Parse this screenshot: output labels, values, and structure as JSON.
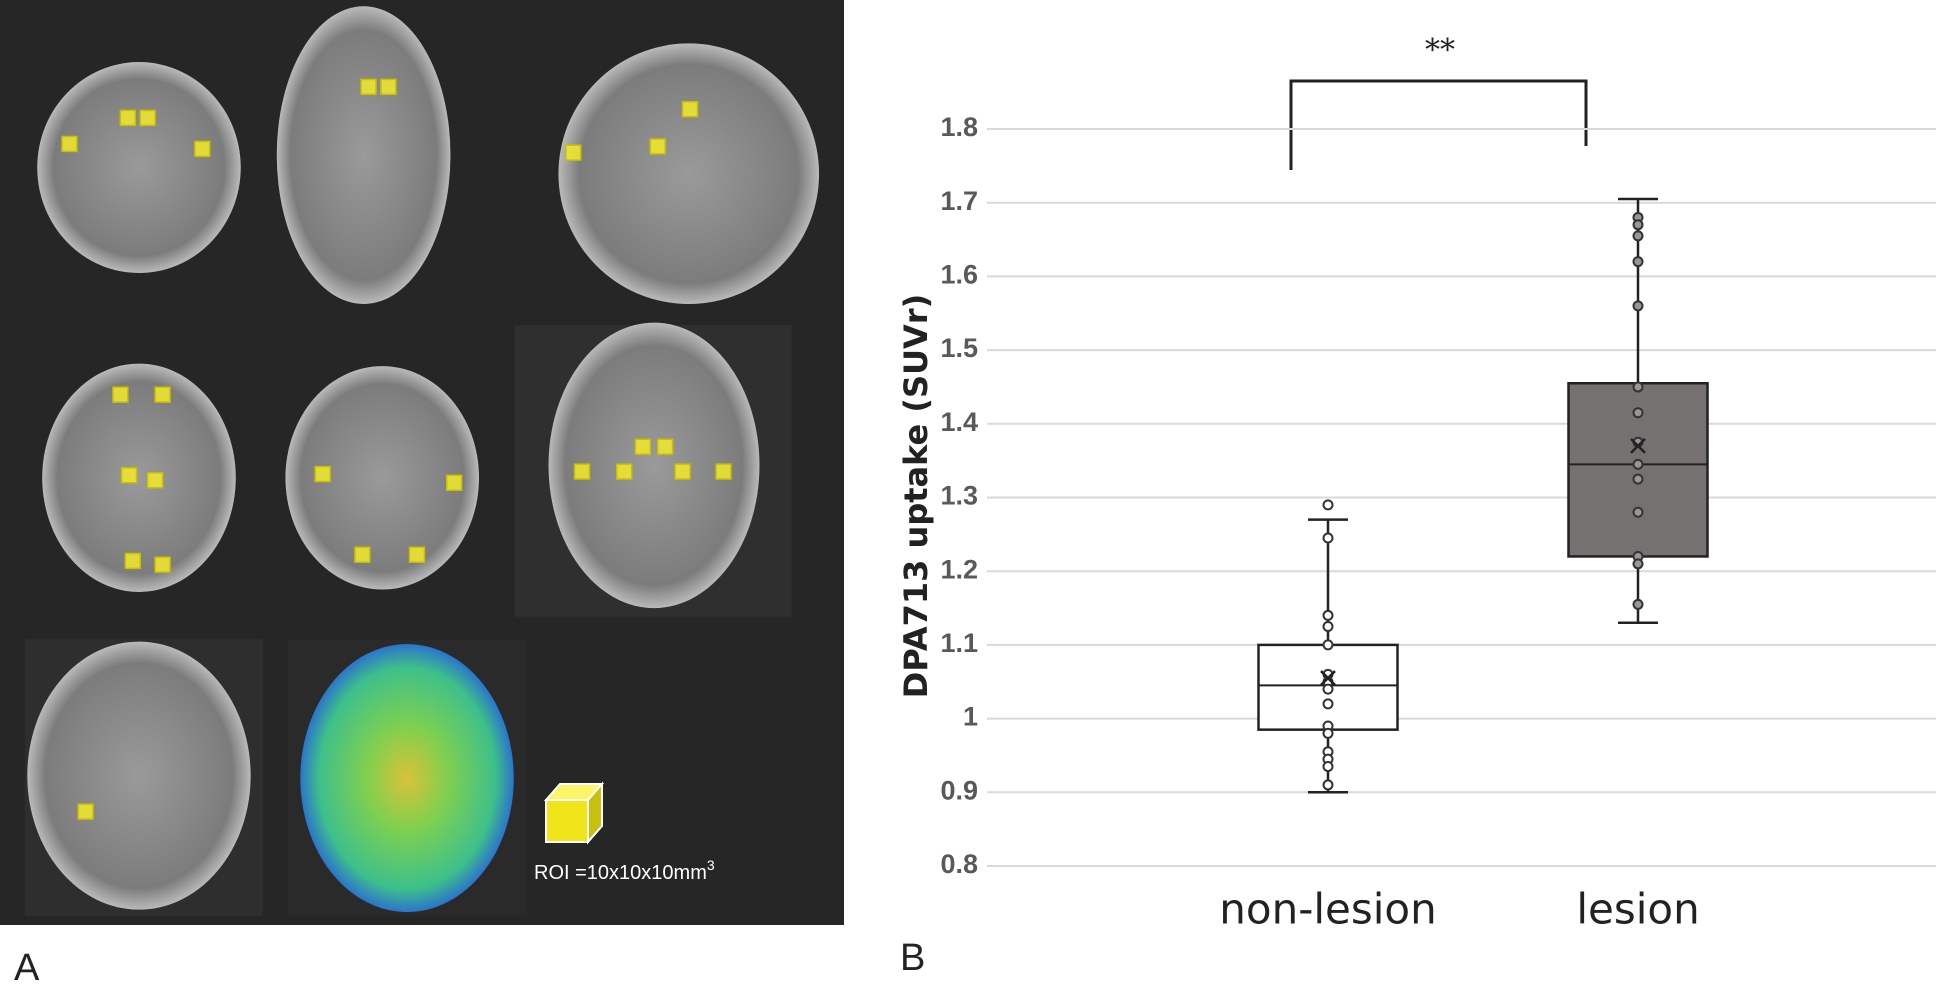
{
  "panel_a": {
    "label": "A",
    "roi_label": "ROI =10x10x10mm",
    "roi_exponent": "3"
  },
  "chart_data": {
    "type": "box",
    "panel_label": "B",
    "y_label": "DPA713 uptake (SUVr)",
    "significance": "**",
    "categories": [
      "non-lesion",
      "lesion"
    ],
    "boxes": [
      {
        "color": "#ffffff",
        "min": 0.9,
        "q1": 0.985,
        "median": 1.045,
        "q3": 1.1,
        "max": 1.27,
        "mean": 1.055,
        "points": [
          1.29,
          1.245,
          1.14,
          1.125,
          1.1,
          1.06,
          1.05,
          1.04,
          1.02,
          0.99,
          0.98,
          0.955,
          0.945,
          0.935,
          0.91
        ]
      },
      {
        "color": "#767171",
        "min": 1.13,
        "q1": 1.22,
        "median": 1.345,
        "q3": 1.455,
        "max": 1.705,
        "mean": 1.37,
        "points": [
          1.68,
          1.67,
          1.655,
          1.62,
          1.56,
          1.45,
          1.415,
          1.375,
          1.345,
          1.325,
          1.28,
          1.22,
          1.21,
          1.155
        ]
      }
    ],
    "ylim": [
      0.8,
      1.8
    ],
    "yticks": [
      0.8,
      0.9,
      1,
      1.1,
      1.2,
      1.3,
      1.4,
      1.5,
      1.6,
      1.7,
      1.8
    ],
    "grid": true
  }
}
